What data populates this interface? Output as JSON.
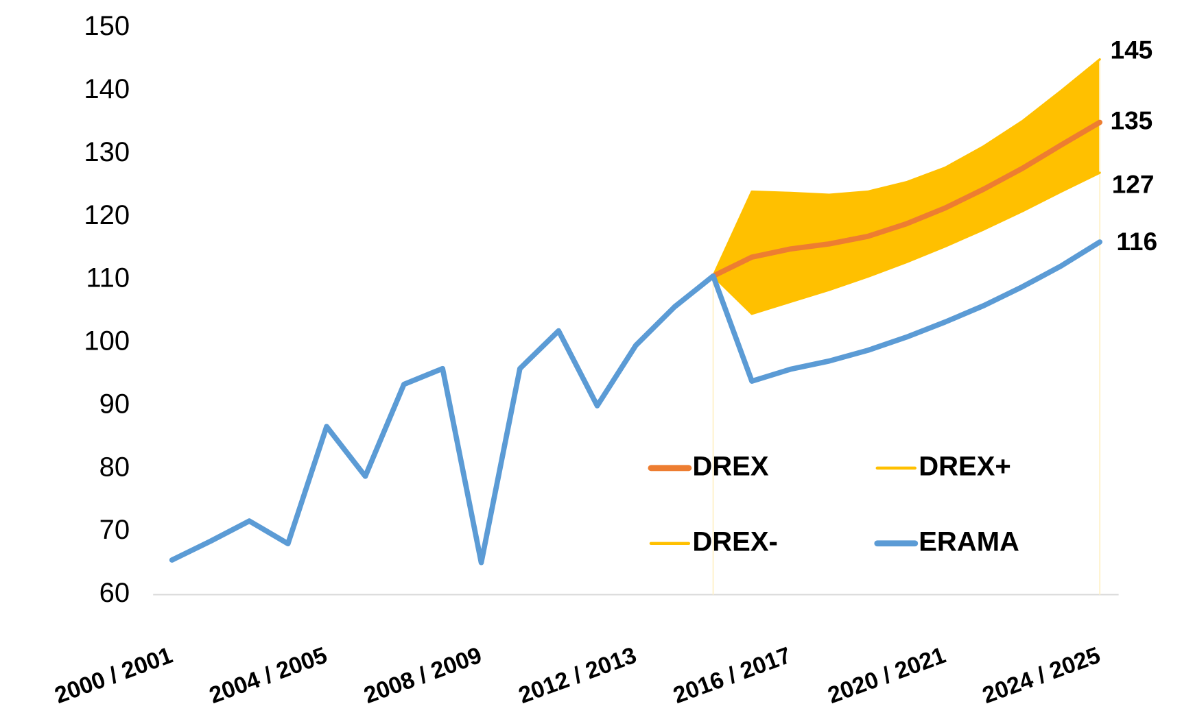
{
  "chart_data": {
    "type": "line",
    "categories": [
      "2000 / 2001",
      null,
      null,
      null,
      "2004 / 2005",
      null,
      null,
      null,
      "2008 / 2009",
      null,
      null,
      null,
      "2012 / 2013",
      null,
      null,
      null,
      "2016 / 2017",
      null,
      null,
      null,
      "2020 / 2021",
      null,
      null,
      null,
      "2024 / 2025"
    ],
    "series": [
      {
        "name": "DREX",
        "color": "#ED7D31",
        "values": [
          null,
          null,
          null,
          null,
          null,
          null,
          null,
          null,
          null,
          null,
          null,
          null,
          null,
          null,
          110.6,
          113.6,
          114.9,
          115.7,
          116.9,
          118.9,
          121.4,
          124.4,
          127.7,
          131.4,
          135
        ]
      },
      {
        "name": "DREX+",
        "color": "#FFC000",
        "values": [
          null,
          null,
          null,
          null,
          null,
          null,
          null,
          null,
          null,
          null,
          null,
          null,
          null,
          null,
          110.6,
          124.0,
          123.8,
          123.5,
          124.0,
          125.5,
          127.8,
          131.2,
          135.2,
          140.0,
          145
        ]
      },
      {
        "name": "DREX-",
        "color": "#FFC000",
        "values": [
          null,
          null,
          null,
          null,
          null,
          null,
          null,
          null,
          null,
          null,
          null,
          null,
          null,
          null,
          110.6,
          104.6,
          106.5,
          108.4,
          110.5,
          112.8,
          115.3,
          118.0,
          120.9,
          124.0,
          127
        ]
      },
      {
        "name": "ERAMA",
        "color": "#5B9BD5",
        "values": [
          65.5,
          68.5,
          71.7,
          68.1,
          86.7,
          78.8,
          93.4,
          95.9,
          65.1,
          95.9,
          101.9,
          90.0,
          99.6,
          105.7,
          110.6,
          93.9,
          95.8,
          97.1,
          98.8,
          100.9,
          103.3,
          105.9,
          108.9,
          112.2,
          116
        ]
      }
    ],
    "band_color": "#FFC000",
    "ylim": [
      60,
      150
    ],
    "yticks": [
      60,
      70,
      80,
      90,
      100,
      110,
      120,
      130,
      140,
      150
    ],
    "grid": false
  }
}
